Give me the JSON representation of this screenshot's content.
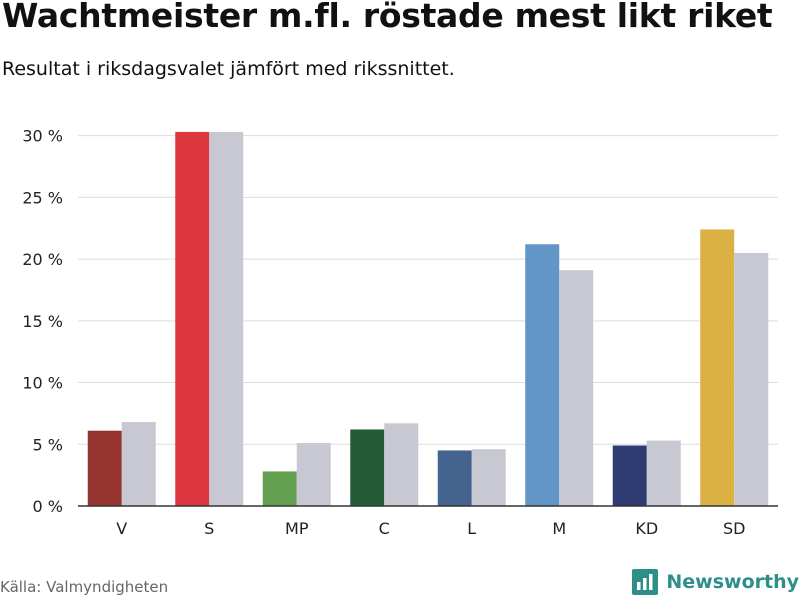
{
  "title": "Wachtmeister m.fl. röstade mest likt riket",
  "subtitle": "Resultat i riksdagsvalet jämfört med rikssnittet.",
  "source": "Källa: Valmyndigheten",
  "brand": {
    "name": "Newsworthy",
    "icon": "bar-chart-logo-icon",
    "color": "#2e8f89"
  },
  "colors": {
    "national": "#c8c8d3",
    "grid": "#dddddd",
    "axis": "#333333"
  },
  "chart_data": {
    "type": "bar",
    "categories": [
      "V",
      "S",
      "MP",
      "C",
      "L",
      "M",
      "KD",
      "SD"
    ],
    "series": [
      {
        "values": [
          6.1,
          30.3,
          2.8,
          6.2,
          4.5,
          21.2,
          4.9,
          22.4
        ],
        "colors": [
          "#963432",
          "#dc363e",
          "#63a04f",
          "#245c35",
          "#44638e",
          "#6296c7",
          "#2e3a72",
          "#dcb143"
        ]
      },
      {
        "values": [
          6.8,
          30.3,
          5.1,
          6.7,
          4.6,
          19.1,
          5.3,
          20.5
        ],
        "colors": [
          "#c8c8d3",
          "#c8c8d3",
          "#c8c8d3",
          "#c8c8d3",
          "#c8c8d3",
          "#c8c8d3",
          "#c8c8d3",
          "#c8c8d3"
        ]
      }
    ],
    "yticks": [
      0,
      5,
      10,
      15,
      20,
      25,
      30
    ],
    "ytick_labels": [
      "0 %",
      "5 %",
      "10 %",
      "15 %",
      "20 %",
      "25 %",
      "30 %"
    ],
    "ylim": [
      0,
      30
    ],
    "xlabel": "",
    "ylabel": "",
    "grid": true
  }
}
